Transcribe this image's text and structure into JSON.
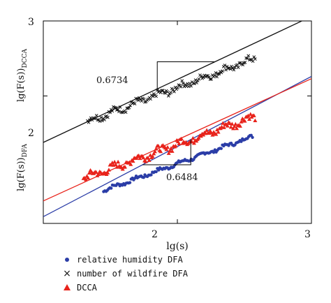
{
  "chart_data": {
    "type": "scatter",
    "xlabel": "lg(s)",
    "ylabel_dcca": "lg(F(s))DCCA",
    "ylabel_dfa": "lg(F(s))DFA",
    "x_ticks": [
      "2",
      "3"
    ],
    "y_ticks": [
      "3",
      "2"
    ],
    "annotations": [
      "0.6734",
      "0.6484"
    ],
    "series": [
      {
        "name": "relative humidity DFA",
        "color": "#2b3da7",
        "marker": "circle",
        "fit": {
          "x": [
            1.0,
            3.0
          ],
          "y": [
            0.39,
            2.26
          ]
        },
        "points": {
          "x_start": 1.45,
          "x_end": 2.56,
          "count": 120,
          "y_base": 0.74,
          "slope": 0.6484,
          "noise": 0.02
        }
      },
      {
        "name": "number of wildfire DFA",
        "color": "#111111",
        "marker": "x",
        "fit": {
          "x": [
            1.0,
            3.0
          ],
          "y": [
            1.38,
            3.06
          ]
        },
        "points": {
          "x_start": 1.33,
          "x_end": 2.58,
          "count": 150,
          "y_base": 1.66,
          "slope": 0.6734,
          "noise": 0.04
        }
      },
      {
        "name": "DCCA",
        "color": "#e8231b",
        "marker": "triangle",
        "fit": {
          "x": [
            1.0,
            3.0
          ],
          "y": [
            0.6,
            2.23
          ]
        },
        "points": {
          "x_start": 1.3,
          "x_end": 2.58,
          "count": 150,
          "y_base": 0.9,
          "slope": 0.6484,
          "noise": 0.045
        }
      }
    ],
    "legend": [
      {
        "label": "relative humidity DFA",
        "marker": "circle",
        "color": "#2b3da7"
      },
      {
        "label": "number of wildfire DFA",
        "marker": "x",
        "color": "#111111"
      },
      {
        "label": "DCCA",
        "marker": "triangle",
        "color": "#e8231b"
      }
    ]
  }
}
